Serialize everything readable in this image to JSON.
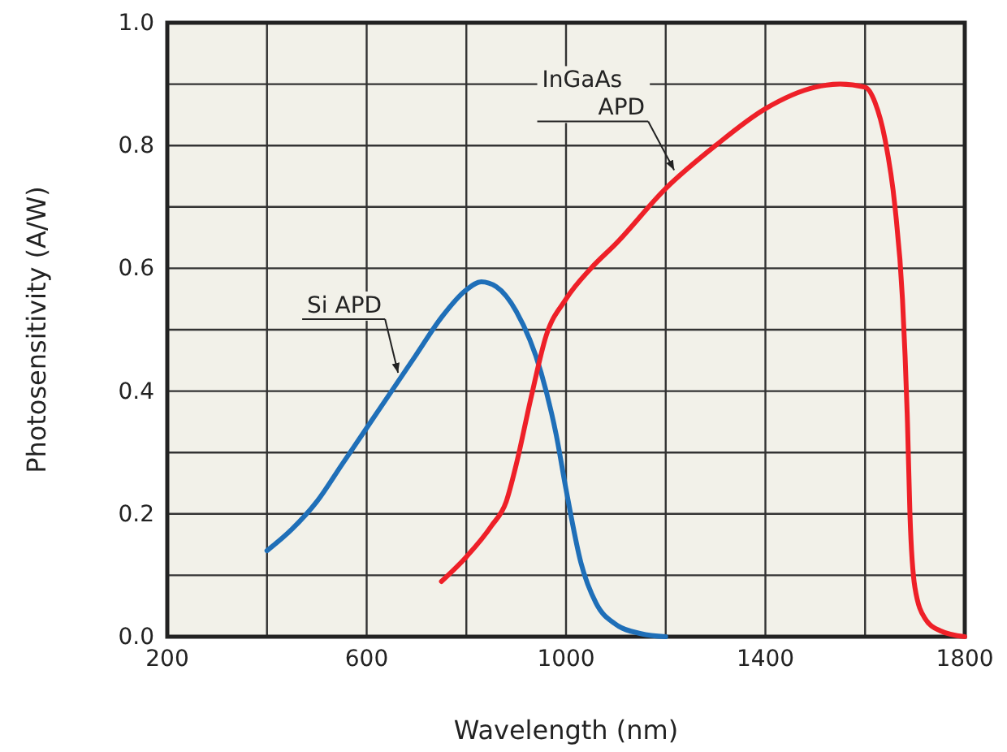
{
  "chart_data": {
    "type": "line",
    "xlabel": "Wavelength (nm)",
    "ylabel": "Photosensitivity (A/W)",
    "xlim": [
      200,
      1800
    ],
    "ylim": [
      0,
      1
    ],
    "xticks": [
      200,
      {
        "value": 400,
        "label": null
      },
      600,
      {
        "value": 800,
        "label": null
      },
      1000,
      {
        "value": 1200,
        "label": null
      },
      1400,
      {
        "value": 1600,
        "label": null
      },
      1800
    ],
    "yticks": [
      {
        "value": 0,
        "label": "0.0"
      },
      {
        "value": 0.1,
        "label": null
      },
      {
        "value": 0.2,
        "label": "0.2"
      },
      {
        "value": 0.3,
        "label": null
      },
      {
        "value": 0.4,
        "label": "0.4"
      },
      {
        "value": 0.5,
        "label": null
      },
      {
        "value": 0.6,
        "label": "0.6"
      },
      {
        "value": 0.7,
        "label": null
      },
      {
        "value": 0.8,
        "label": "0.8"
      },
      {
        "value": 0.9,
        "label": null
      },
      {
        "value": 1,
        "label": "1.0"
      }
    ],
    "grid": true,
    "marker": "none",
    "line_style": "solid",
    "series": [
      {
        "color": "#1f6fb8",
        "x": [
          400,
          450,
          500,
          550,
          600,
          650,
          700,
          750,
          800,
          830,
          860,
          900,
          950,
          980,
          1000,
          1030,
          1060,
          1100,
          1150,
          1200
        ],
        "values": [
          0.14,
          0.175,
          0.22,
          0.28,
          0.34,
          0.4,
          0.46,
          0.52,
          0.565,
          0.578,
          0.57,
          0.53,
          0.43,
          0.33,
          0.24,
          0.12,
          0.055,
          0.02,
          0.005,
          0.0
        ]
      },
      {
        "color": "#ee2028",
        "x": [
          750,
          800,
          850,
          880,
          900,
          930,
          960,
          1000,
          1050,
          1100,
          1200,
          1300,
          1400,
          1500,
          1550,
          1600,
          1620,
          1640,
          1660,
          1675,
          1685,
          1690,
          1700,
          1720,
          1750,
          1800
        ],
        "values": [
          0.09,
          0.13,
          0.18,
          0.22,
          0.28,
          0.39,
          0.49,
          0.55,
          0.6,
          0.64,
          0.73,
          0.8,
          0.86,
          0.895,
          0.9,
          0.895,
          0.87,
          0.81,
          0.7,
          0.55,
          0.35,
          0.2,
          0.08,
          0.03,
          0.01,
          0.0
        ]
      }
    ],
    "annotations": [
      {
        "text": "Si APD",
        "x": 663,
        "y": 0.43
      },
      {
        "text": "InGaAs APD",
        "x": 1217,
        "y": 0.76
      }
    ]
  }
}
